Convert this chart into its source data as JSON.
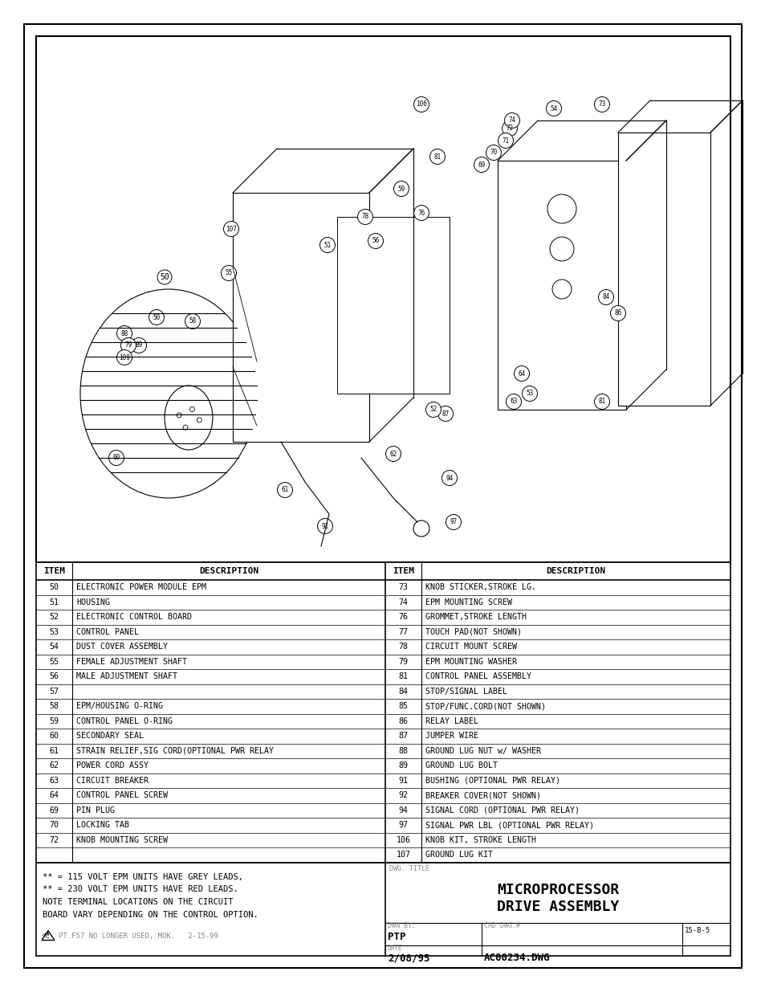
{
  "page_bg": "#ffffff",
  "border_color": "#000000",
  "title": "MICROPROCESSOR\nDRIVE ASSEMBLY",
  "dwg_title_label": "DWG. TITLE",
  "dwn_by": "PTP",
  "dwn_by_label": "DWN BY:",
  "cad_dwg_label": "CAD DWG.#",
  "cad_dwg_num": "AC00234.DWG",
  "date_label": "DATE",
  "date_val": "2/08/95",
  "rev_label": "15-B-5",
  "left_items": [
    [
      50,
      "ELECTRONIC POWER MODULE EPM"
    ],
    [
      51,
      "HOUSING"
    ],
    [
      52,
      "ELECTRONIC CONTROL BOARD"
    ],
    [
      53,
      "CONTROL PANEL"
    ],
    [
      54,
      "DUST COVER ASSEMBLY"
    ],
    [
      55,
      "FEMALE ADJUSTMENT SHAFT"
    ],
    [
      56,
      "MALE ADJUSTMENT SHAFT"
    ],
    [
      57,
      ""
    ],
    [
      58,
      "EPM/HOUSING O-RING"
    ],
    [
      59,
      "CONTROL PANEL O-RING"
    ],
    [
      60,
      "SECONDARY SEAL"
    ],
    [
      61,
      "STRAIN RELIEF,SIG CORD(OPTIONAL PWR RELAY"
    ],
    [
      62,
      "POWER CORD ASSY"
    ],
    [
      63,
      "CIRCUIT BREAKER"
    ],
    [
      64,
      "CONTROL PANEL SCREW"
    ],
    [
      69,
      "PIN PLUG"
    ],
    [
      70,
      "LOCKING TAB"
    ],
    [
      72,
      "KNOB MOUNTING SCREW"
    ]
  ],
  "right_items": [
    [
      73,
      "KNOB STICKER,STROKE LG."
    ],
    [
      74,
      "EPM MOUNTING SCREW"
    ],
    [
      76,
      "GROMMET,STROKE LENGTH"
    ],
    [
      77,
      "TOUCH PAD(NOT SHOWN)"
    ],
    [
      78,
      "CIRCUIT MOUNT SCREW"
    ],
    [
      79,
      "EPM MOUNTING WASHER"
    ],
    [
      81,
      "CONTROL PANEL ASSEMBLY"
    ],
    [
      84,
      "STOP/SIGNAL LABEL"
    ],
    [
      85,
      "STOP/FUNC.CORD(NOT SHOWN)"
    ],
    [
      86,
      "RELAY LABEL"
    ],
    [
      87,
      "JUMPER WIRE"
    ],
    [
      88,
      "GROUND LUG NUT w/ WASHER"
    ],
    [
      89,
      "GROUND LUG BOLT"
    ],
    [
      91,
      "BUSHING (OPTIONAL PWR RELAY)"
    ],
    [
      92,
      "BREAKER COVER(NOT SHOWN)"
    ],
    [
      94,
      "SIGNAL CORD (OPTIONAL PWR RELAY)"
    ],
    [
      97,
      "SIGNAL PWR LBL (OPTIONAL PWR RELAY)"
    ],
    [
      106,
      "KNOB KIT, STROKE LENGTH"
    ],
    [
      107,
      "GROUND LUG KIT"
    ]
  ],
  "notes": [
    "** = 115 VOLT EPM UNITS HAVE GREY LEADS,",
    "** = 230 VOLT EPM UNITS HAVE RED LEADS.",
    "NOTE TERMINAL LOCATIONS ON THE CIRCUIT",
    "BOARD VARY DEPENDING ON THE CONTROL OPTION."
  ],
  "warning_text": "PT.F57 NO LONGER USED, MOK.   2-15-99",
  "table_header_item": "ITEM",
  "table_header_desc": "DESCRIPTION"
}
